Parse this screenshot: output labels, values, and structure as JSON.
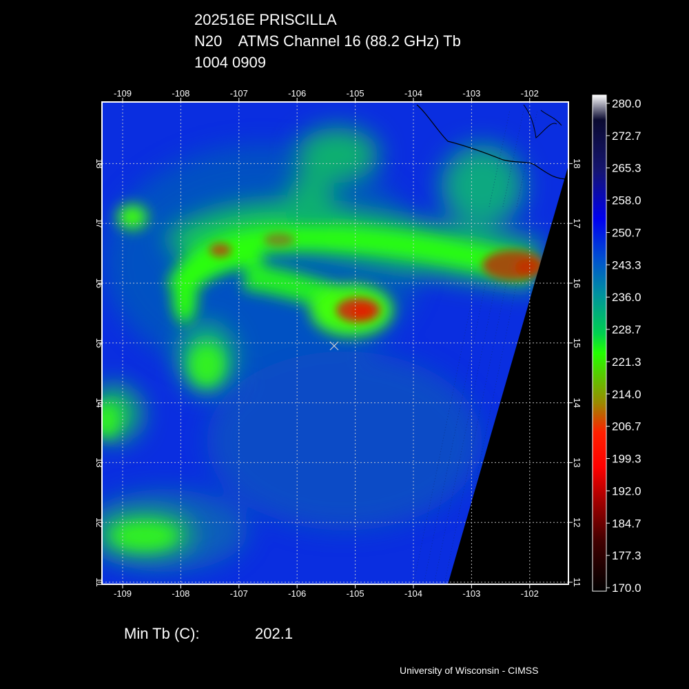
{
  "title": {
    "storm": "202516E PRISCILLA",
    "sensor": "N20    ATMS Channel 16 (88.2 GHz) Tb",
    "datetime": "1004 0909"
  },
  "map": {
    "lon_ticks": [
      "-109",
      "-108",
      "-107",
      "-106",
      "-105",
      "-104",
      "-103",
      "-102"
    ],
    "lat_ticks": [
      "18",
      "17",
      "16",
      "15",
      "14",
      "13",
      "12",
      "11"
    ],
    "storm_center_marker": "x-marker",
    "colors": {
      "ocean_bg": "#0b2fd8",
      "no_data": "#000000",
      "grid": "#d8d8d8",
      "coastline": "#000000"
    }
  },
  "colorbar": {
    "labels": [
      "280.0",
      "272.7",
      "265.3",
      "258.0",
      "250.7",
      "243.3",
      "236.0",
      "228.7",
      "221.3",
      "214.0",
      "206.7",
      "199.3",
      "192.0",
      "184.7",
      "177.3",
      "170.0"
    ],
    "colors": [
      "#ffffff",
      "#0a0a3a",
      "#14147a",
      "#0000e6",
      "#0050d0",
      "#0090a0",
      "#00d060",
      "#22ff00",
      "#9a8a00",
      "#d04000",
      "#ff0000",
      "#c00000",
      "#800000",
      "#400000",
      "#1a0000",
      "#000000"
    ]
  },
  "stats": {
    "min_tb_label": "Min Tb (C):",
    "min_tb_value": "202.1"
  },
  "credit": "University of Wisconsin - CIMSS"
}
